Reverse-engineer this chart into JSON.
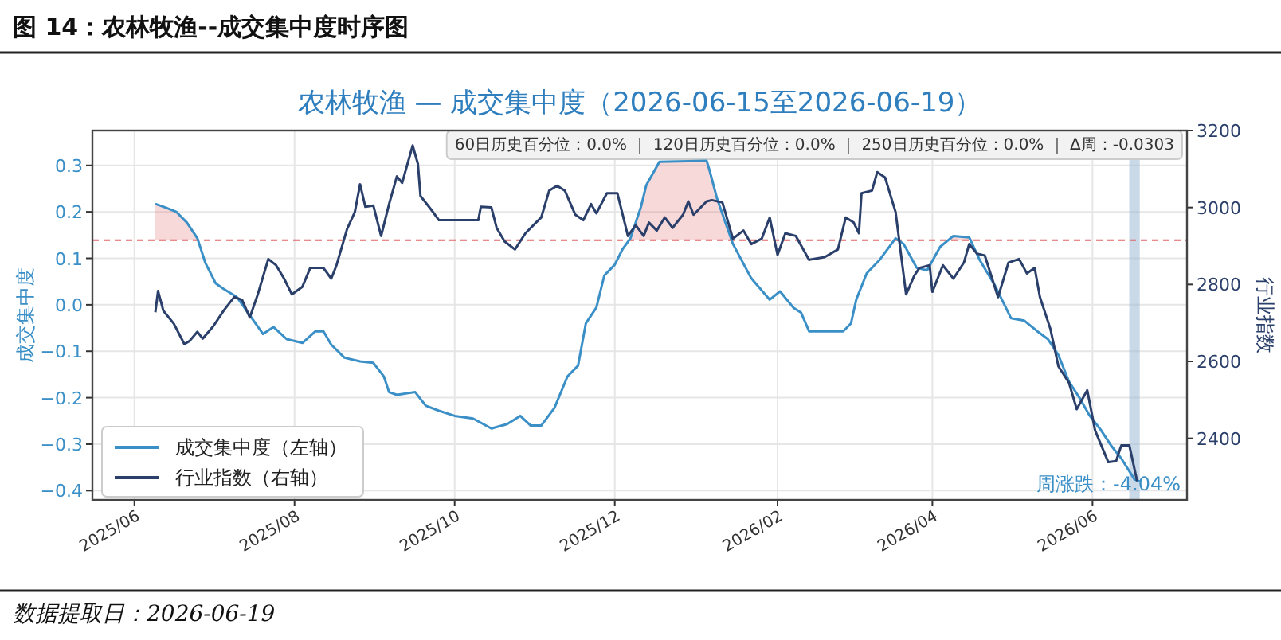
{
  "chart_data": {
    "type": "line",
    "title": "农林牧渔 — 成交集中度（2026-06-15至2026-06-19）",
    "ylabel": "成交集中度",
    "y2label": "行业指数",
    "annotations": [
      "图 14：农林牧渔--成交集中度时序图",
      "60日历史百分位：0.0% ｜ 120日历史百分位：0.0% ｜ 250日历史百分位：0.0% ｜ Δ周：-0.0303",
      "周涨跌：-4.04%",
      "数据提取日：2026-06-19"
    ],
    "xlim": [
      "2025-05-16",
      "2026-07-07"
    ],
    "xticks": [
      {
        "value": "2025-06-01",
        "label": "2025/06"
      },
      {
        "value": "2025-08-01",
        "label": "2025/08"
      },
      {
        "value": "2025-10-01",
        "label": "2025/10"
      },
      {
        "value": "2025-12-01",
        "label": "2025/12"
      },
      {
        "value": "2026-02-01",
        "label": "2026/02"
      },
      {
        "value": "2026-04-01",
        "label": "2026/04"
      },
      {
        "value": "2026-06-01",
        "label": "2026/06"
      }
    ],
    "ylim": [
      -0.42,
      0.375
    ],
    "yticks": [
      -0.4,
      -0.3,
      -0.2,
      -0.1,
      {
        "value": 0,
        "label": "0.0"
      },
      0.1,
      0.2,
      0.3
    ],
    "y2lim": [
      2240,
      3200
    ],
    "y2ticks": [
      2400,
      2600,
      2800,
      3000,
      3200
    ],
    "grid": true,
    "legend": "bottom left",
    "marker": "none",
    "line_style": "solid",
    "ref_lines": [
      {
        "axis": "y",
        "value": 0.139,
        "color": "#e06666",
        "line_style": "dashed"
      }
    ],
    "bands": [
      {
        "axis": "x",
        "from": "2026-06-15",
        "to": "2026-06-19",
        "color": "#9dbad6"
      }
    ],
    "series": [
      {
        "type": "area",
        "color": "#e06666",
        "x": [
          "2025-06-09",
          "2025-06-13",
          "2025-06-17",
          "2025-06-21",
          "2025-06-25",
          "2025-06-26"
        ],
        "values": [
          0.217,
          0.209,
          0.2,
          0.177,
          0.143,
          0.139
        ]
      },
      {
        "type": "area",
        "color": "#e06666",
        "x": [
          "2025-12-06",
          "2025-12-07",
          "2025-12-11",
          "2025-12-13",
          "2025-12-18",
          "2026-01-05",
          "2026-01-06",
          "2026-01-09",
          "2026-01-14"
        ],
        "values": [
          0.139,
          0.143,
          0.211,
          0.257,
          0.308,
          0.31,
          0.291,
          0.228,
          0.139
        ]
      },
      {
        "type": "area",
        "color": "#e06666",
        "x": [
          "2026-04-07",
          "2026-04-09",
          "2026-04-15",
          "2026-04-17"
        ],
        "values": [
          0.139,
          0.148,
          0.145,
          0.139
        ]
      },
      {
        "name": "成交集中度（左轴）",
        "color": "#3a8fc7",
        "x": [
          "2025-06-09",
          "2025-06-13",
          "2025-06-17",
          "2025-06-21",
          "2025-06-25",
          "2025-06-28",
          "2025-07-02",
          "2025-07-05",
          "2025-07-10",
          "2025-07-15",
          "2025-07-20",
          "2025-07-24",
          "2025-07-29",
          "2025-08-04",
          "2025-08-09",
          "2025-08-12",
          "2025-08-15",
          "2025-08-20",
          "2025-08-26",
          "2025-08-31",
          "2025-09-04",
          "2025-09-06",
          "2025-09-09",
          "2025-09-16",
          "2025-09-20",
          "2025-09-25",
          "2025-10-01",
          "2025-10-08",
          "2025-10-15",
          "2025-10-21",
          "2025-10-26",
          "2025-10-30",
          "2025-11-03",
          "2025-11-08",
          "2025-11-13",
          "2025-11-17",
          "2025-11-20",
          "2025-11-24",
          "2025-11-27",
          "2025-12-01",
          "2025-12-04",
          "2025-12-07",
          "2025-12-11",
          "2025-12-13",
          "2025-12-18",
          "2026-01-05",
          "2026-01-06",
          "2026-01-09",
          "2026-01-15",
          "2026-01-22",
          "2026-01-29",
          "2026-02-02",
          "2026-02-07",
          "2026-02-10",
          "2026-02-13",
          "2026-02-19",
          "2026-02-26",
          "2026-03-01",
          "2026-03-03",
          "2026-03-07",
          "2026-03-12",
          "2026-03-18",
          "2026-03-21",
          "2026-03-26",
          "2026-03-30",
          "2026-04-04",
          "2026-04-09",
          "2026-04-15",
          "2026-04-19",
          "2026-04-25",
          "2026-05-01",
          "2026-05-06",
          "2026-05-11",
          "2026-05-15",
          "2026-05-19",
          "2026-05-23",
          "2026-05-27",
          "2026-05-31",
          "2026-06-04",
          "2026-06-08",
          "2026-06-12",
          "2026-06-17",
          "2026-06-19"
        ],
        "values": [
          0.217,
          0.209,
          0.2,
          0.177,
          0.143,
          0.091,
          0.046,
          0.034,
          0.017,
          -0.023,
          -0.063,
          -0.048,
          -0.074,
          -0.082,
          -0.057,
          -0.057,
          -0.086,
          -0.114,
          -0.122,
          -0.125,
          -0.154,
          -0.188,
          -0.194,
          -0.188,
          -0.217,
          -0.228,
          -0.239,
          -0.245,
          -0.266,
          -0.257,
          -0.239,
          -0.26,
          -0.26,
          -0.222,
          -0.154,
          -0.131,
          -0.04,
          -0.006,
          0.063,
          0.086,
          0.12,
          0.143,
          0.211,
          0.257,
          0.308,
          0.31,
          0.291,
          0.228,
          0.131,
          0.057,
          0.011,
          0.029,
          -0.006,
          -0.017,
          -0.057,
          -0.057,
          -0.057,
          -0.04,
          0.011,
          0.068,
          0.097,
          0.143,
          0.131,
          0.08,
          0.074,
          0.125,
          0.148,
          0.145,
          0.097,
          0.04,
          -0.029,
          -0.034,
          -0.057,
          -0.074,
          -0.108,
          -0.165,
          -0.2,
          -0.239,
          -0.268,
          -0.302,
          -0.331,
          -0.376,
          -0.38
        ]
      },
      {
        "name": "行业指数（右轴）",
        "color": "#2b3f6b",
        "axis": "y2",
        "x": [
          "2025-06-09",
          "2025-06-10",
          "2025-06-12",
          "2025-06-16",
          "2025-06-20",
          "2025-06-22",
          "2025-06-25",
          "2025-06-27",
          "2025-07-01",
          "2025-07-05",
          "2025-07-09",
          "2025-07-12",
          "2025-07-15",
          "2025-07-18",
          "2025-07-22",
          "2025-07-25",
          "2025-07-28",
          "2025-07-31",
          "2025-08-04",
          "2025-08-07",
          "2025-08-12",
          "2025-08-15",
          "2025-08-17",
          "2025-08-21",
          "2025-08-24",
          "2025-08-26",
          "2025-08-28",
          "2025-08-31",
          "2025-09-03",
          "2025-09-06",
          "2025-09-09",
          "2025-09-11",
          "2025-09-15",
          "2025-09-17",
          "2025-09-18",
          "2025-09-22",
          "2025-09-25",
          "2025-09-28",
          "2025-10-10",
          "2025-10-11",
          "2025-10-15",
          "2025-10-17",
          "2025-10-20",
          "2025-10-24",
          "2025-10-28",
          "2025-11-01",
          "2025-11-03",
          "2025-11-06",
          "2025-11-09",
          "2025-11-12",
          "2025-11-16",
          "2025-11-19",
          "2025-11-22",
          "2025-11-24",
          "2025-11-28",
          "2025-12-02",
          "2025-12-06",
          "2025-12-09",
          "2025-12-12",
          "2025-12-14",
          "2025-12-17",
          "2025-12-20",
          "2025-12-23",
          "2025-12-27",
          "2025-12-29",
          "2025-12-31",
          "2026-01-05",
          "2026-01-07",
          "2026-01-11",
          "2026-01-15",
          "2026-01-19",
          "2026-01-22",
          "2026-01-26",
          "2026-01-29",
          "2026-02-01",
          "2026-02-04",
          "2026-02-08",
          "2026-02-13",
          "2026-02-19",
          "2026-02-24",
          "2026-02-27",
          "2026-03-02",
          "2026-03-04",
          "2026-03-05",
          "2026-03-09",
          "2026-03-11",
          "2026-03-14",
          "2026-03-18",
          "2026-03-22",
          "2026-03-25",
          "2026-03-27",
          "2026-03-31",
          "2026-04-01",
          "2026-04-05",
          "2026-04-09",
          "2026-04-13",
          "2026-04-15",
          "2026-04-18",
          "2026-04-21",
          "2026-04-26",
          "2026-04-30",
          "2026-05-04",
          "2026-05-07",
          "2026-05-10",
          "2026-05-12",
          "2026-05-16",
          "2026-05-19",
          "2026-05-23",
          "2026-05-26",
          "2026-05-30",
          "2026-06-02",
          "2026-06-07",
          "2026-06-10",
          "2026-06-12",
          "2026-06-15",
          "2026-06-18"
        ],
        "values": [
          2728,
          2783,
          2732,
          2698,
          2645,
          2653,
          2677,
          2659,
          2691,
          2732,
          2767,
          2760,
          2714,
          2774,
          2866,
          2850,
          2815,
          2774,
          2794,
          2843,
          2843,
          2815,
          2850,
          2944,
          2988,
          3060,
          3002,
          3005,
          2926,
          3009,
          3081,
          3064,
          3161,
          3113,
          3030,
          2995,
          2967,
          2967,
          2967,
          3002,
          3000,
          2947,
          2912,
          2891,
          2933,
          2961,
          2974,
          3044,
          3057,
          3044,
          2981,
          2967,
          3009,
          2985,
          3037,
          3037,
          2926,
          2954,
          2926,
          2961,
          2940,
          2974,
          2947,
          2981,
          3016,
          2981,
          3016,
          3019,
          3013,
          2919,
          2940,
          2905,
          2919,
          2974,
          2877,
          2933,
          2926,
          2864,
          2871,
          2891,
          2974,
          2961,
          2933,
          3037,
          3044,
          3092,
          3078,
          2988,
          2774,
          2822,
          2843,
          2850,
          2781,
          2850,
          2815,
          2857,
          2905,
          2880,
          2875,
          2767,
          2857,
          2866,
          2829,
          2843,
          2767,
          2684,
          2587,
          2545,
          2476,
          2525,
          2421,
          2338,
          2341,
          2382,
          2382,
          2289
        ]
      }
    ]
  }
}
